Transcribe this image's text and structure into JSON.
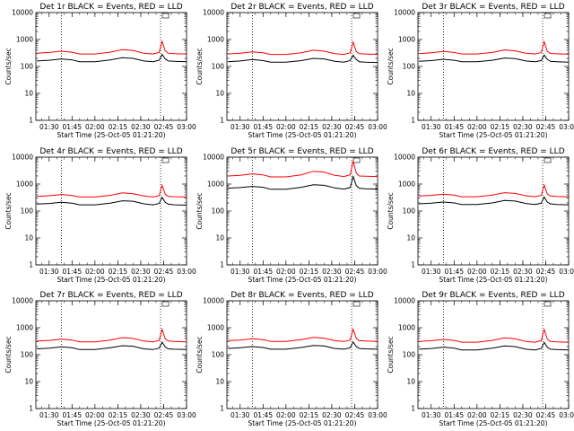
{
  "chart_data": {
    "layout": "3x3 grid",
    "type": "line",
    "y_scale": "log",
    "ylim": [
      1,
      10000
    ],
    "y_ticks": [
      "1",
      "10",
      "100",
      "1000",
      "10000"
    ],
    "x_ticks": [
      "01:30",
      "01:45",
      "02:00",
      "02:15",
      "02:30",
      "02:45",
      "03:00"
    ],
    "xlim": [
      "01:21:20",
      "03:00"
    ],
    "vertical_markers": [
      "01:38",
      "02:43"
    ],
    "ylabel": "Counts/sec",
    "xlabel": "Start Time (25-Oct-05 01:21:20)",
    "colors": {
      "events": "#000000",
      "lld": "#ff0000"
    },
    "x": [
      "01:22",
      "01:30",
      "01:38",
      "01:45",
      "01:50",
      "02:00",
      "02:10",
      "02:18",
      "02:25",
      "02:32",
      "02:38",
      "02:42",
      "02:44",
      "02:46",
      "02:48",
      "02:52",
      "03:00"
    ],
    "panels": [
      {
        "title": "Det 1r BLACK = Events, RED = LLD",
        "series": [
          {
            "color": "#000000",
            "values": [
              160,
              170,
              190,
              175,
              150,
              150,
              175,
              210,
              200,
              160,
              150,
              170,
              280,
              190,
              160,
              155,
              150
            ]
          },
          {
            "color": "#ff0000",
            "values": [
              310,
              330,
              370,
              340,
              290,
              290,
              340,
              420,
              390,
              310,
              290,
              330,
              850,
              380,
              310,
              300,
              290
            ]
          }
        ]
      },
      {
        "title": "Det 2r BLACK = Events, RED = LLD",
        "series": [
          {
            "color": "#000000",
            "values": [
              150,
              160,
              180,
              165,
              145,
              145,
              165,
              200,
              190,
              155,
              145,
              165,
              260,
              180,
              150,
              145,
              140
            ]
          },
          {
            "color": "#ff0000",
            "values": [
              290,
              310,
              350,
              320,
              280,
              280,
              320,
              400,
              370,
              300,
              280,
              320,
              800,
              360,
              300,
              290,
              280
            ]
          }
        ]
      },
      {
        "title": "Det 3r BLACK = Events, RED = LLD",
        "series": [
          {
            "color": "#000000",
            "values": [
              155,
              165,
              185,
              170,
              150,
              150,
              170,
              205,
              195,
              160,
              150,
              165,
              265,
              185,
              155,
              150,
              145
            ]
          },
          {
            "color": "#ff0000",
            "values": [
              300,
              320,
              360,
              330,
              290,
              290,
              330,
              410,
              380,
              310,
              290,
              325,
              820,
              370,
              305,
              295,
              285
            ]
          }
        ]
      },
      {
        "title": "Det 4r BLACK = Events, RED = LLD",
        "series": [
          {
            "color": "#000000",
            "values": [
              180,
              190,
              210,
              195,
              170,
              170,
              195,
              240,
              230,
              185,
              170,
              190,
              320,
              210,
              180,
              170,
              165
            ]
          },
          {
            "color": "#ff0000",
            "values": [
              350,
              370,
              410,
              380,
              330,
              330,
              380,
              470,
              440,
              360,
              330,
              370,
              900,
              420,
              350,
              340,
              330
            ]
          }
        ]
      },
      {
        "title": "Det 5r BLACK = Events, RED = LLD",
        "series": [
          {
            "color": "#000000",
            "values": [
              700,
              740,
              820,
              760,
              640,
              640,
              760,
              950,
              900,
              720,
              650,
              740,
              1900,
              880,
              700,
              670,
              650
            ]
          },
          {
            "color": "#ff0000",
            "values": [
              2000,
              2100,
              2400,
              2200,
              1850,
              1850,
              2200,
              3000,
              2800,
              2100,
              1900,
              2200,
              7000,
              2600,
              2000,
              1950,
              1900
            ]
          }
        ]
      },
      {
        "title": "Det 6r BLACK = Events, RED = LLD",
        "series": [
          {
            "color": "#000000",
            "values": [
              185,
              195,
              215,
              200,
              175,
              175,
              200,
              245,
              235,
              190,
              175,
              195,
              330,
              215,
              185,
              175,
              170
            ]
          },
          {
            "color": "#ff0000",
            "values": [
              360,
              380,
              420,
              390,
              340,
              340,
              390,
              480,
              450,
              370,
              340,
              380,
              920,
              430,
              360,
              350,
              340
            ]
          }
        ]
      },
      {
        "title": "Det 7r BLACK = Events, RED = LLD",
        "series": [
          {
            "color": "#000000",
            "values": [
              165,
              175,
              195,
              180,
              155,
              155,
              180,
              215,
              205,
              165,
              155,
              175,
              290,
              195,
              165,
              160,
              155
            ]
          },
          {
            "color": "#ff0000",
            "values": [
              320,
              340,
              380,
              350,
              300,
              300,
              350,
              430,
              400,
              320,
              300,
              340,
              870,
              390,
              320,
              310,
              300
            ]
          }
        ]
      },
      {
        "title": "Det 8r BLACK = Events, RED = LLD",
        "series": [
          {
            "color": "#000000",
            "values": [
              170,
              180,
              200,
              185,
              160,
              160,
              185,
              220,
              210,
              170,
              160,
              180,
              295,
              200,
              170,
              165,
              160
            ]
          },
          {
            "color": "#ff0000",
            "values": [
              330,
              350,
              390,
              360,
              310,
              310,
              360,
              440,
              410,
              330,
              310,
              350,
              880,
              400,
              330,
              320,
              310
            ]
          }
        ]
      },
      {
        "title": "Det 9r BLACK = Events, RED = LLD",
        "series": [
          {
            "color": "#000000",
            "values": [
              160,
              170,
              190,
              175,
              150,
              150,
              175,
              210,
              200,
              160,
              150,
              170,
              285,
              190,
              160,
              155,
              150
            ]
          },
          {
            "color": "#ff0000",
            "values": [
              310,
              330,
              370,
              340,
              290,
              290,
              340,
              420,
              390,
              310,
              290,
              330,
              860,
              380,
              310,
              300,
              290
            ]
          }
        ]
      }
    ]
  }
}
